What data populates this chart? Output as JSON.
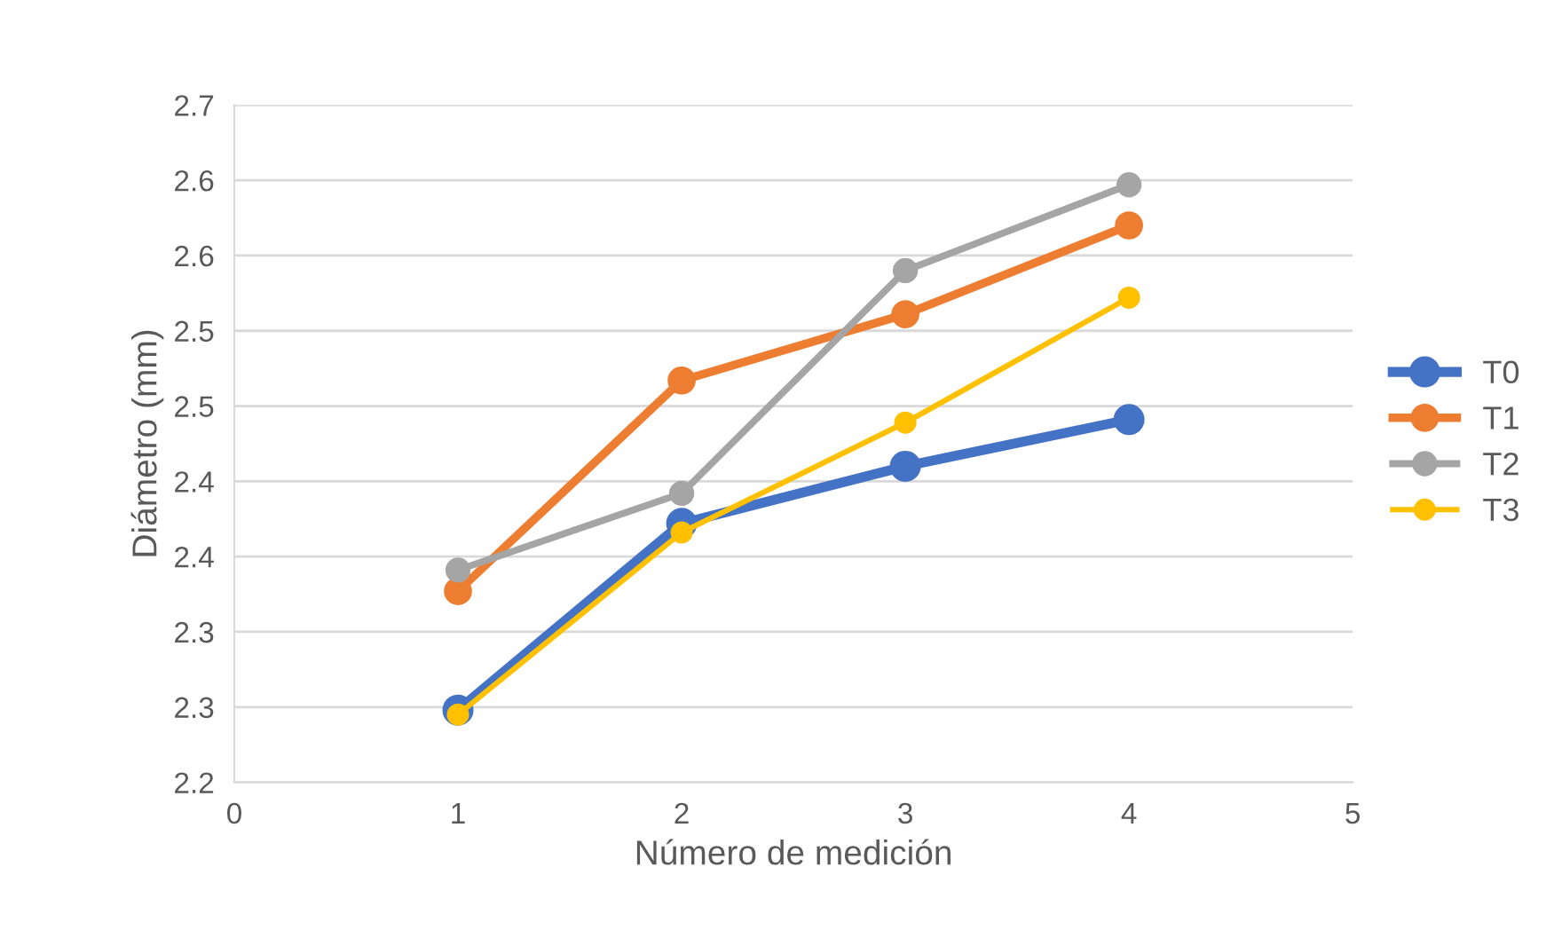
{
  "chart_data": {
    "type": "line",
    "xlabel": "Número de medición",
    "ylabel": "Diámetro (mm)",
    "x": [
      1,
      2,
      3,
      4
    ],
    "series": [
      {
        "name": "T0",
        "color": "#4472c4",
        "values": [
          2.248,
          2.372,
          2.41,
          2.441
        ]
      },
      {
        "name": "T1",
        "color": "#ed7d31",
        "values": [
          2.327,
          2.467,
          2.511,
          2.57
        ]
      },
      {
        "name": "T2",
        "color": "#a5a5a5",
        "values": [
          2.341,
          2.392,
          2.54,
          2.597
        ]
      },
      {
        "name": "T3",
        "color": "#ffc000",
        "values": [
          2.245,
          2.366,
          2.439,
          2.522
        ]
      }
    ],
    "xlim": [
      0,
      5
    ],
    "xticks": [
      0,
      1,
      2,
      3,
      4,
      5
    ],
    "ylim": [
      2.2,
      2.65
    ],
    "yticks": [
      2.2,
      {
        "value": 2.25,
        "label": "2.3"
      },
      2.3,
      {
        "value": 2.35,
        "label": "2.4"
      },
      2.4,
      {
        "value": 2.45,
        "label": "2.5"
      },
      2.5,
      {
        "value": 2.55,
        "label": "2.6"
      },
      2.6,
      {
        "value": 2.65,
        "label": "2.7"
      }
    ],
    "grid": "y",
    "legend": "right",
    "marker": "circle",
    "line_style": "solid"
  }
}
